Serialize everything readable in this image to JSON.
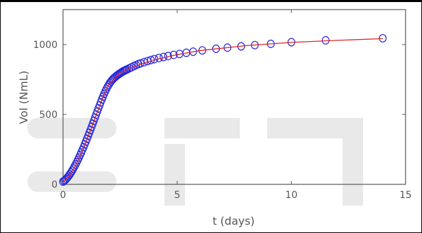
{
  "chart_data": {
    "type": "scatter",
    "title": "",
    "xlabel": "t (days)",
    "ylabel": "Vol (NmL)",
    "xlim": [
      0,
      15
    ],
    "ylim": [
      0,
      1250
    ],
    "xticks": [
      0,
      5,
      10,
      15
    ],
    "yticks": [
      0,
      500,
      1000
    ],
    "grid": false,
    "legend": "none",
    "colors": {
      "markers": "#2222dd",
      "fit_line": "#dd2222",
      "axes": "#555555"
    },
    "series": [
      {
        "style": "markers",
        "x": [
          0,
          0.05,
          0.1,
          0.15,
          0.2,
          0.25,
          0.3,
          0.35,
          0.4,
          0.45,
          0.5,
          0.55,
          0.6,
          0.65,
          0.7,
          0.75,
          0.8,
          0.85,
          0.9,
          0.95,
          1.0,
          1.05,
          1.1,
          1.15,
          1.2,
          1.25,
          1.3,
          1.35,
          1.4,
          1.45,
          1.5,
          1.55,
          1.6,
          1.65,
          1.7,
          1.75,
          1.8,
          1.85,
          1.9,
          1.95,
          2.0,
          2.05,
          2.1,
          2.15,
          2.2,
          2.25,
          2.3,
          2.35,
          2.4,
          2.45,
          2.5,
          2.55,
          2.6,
          2.65,
          2.7,
          2.75,
          2.8,
          2.9,
          3.0,
          3.1,
          3.2,
          3.3,
          3.4,
          3.55,
          3.7,
          3.85,
          4.0,
          4.2,
          4.4,
          4.6,
          4.85,
          5.1,
          5.4,
          5.7,
          6.1,
          6.7,
          7.2,
          7.8,
          8.4,
          9.1,
          10.0,
          11.5,
          14.0
        ],
        "y": [
          20,
          25,
          32,
          40,
          50,
          60,
          72,
          85,
          98,
          112,
          127,
          142,
          158,
          175,
          192,
          210,
          228,
          247,
          266,
          286,
          306,
          326,
          347,
          368,
          389,
          411,
          433,
          455,
          477,
          499,
          521,
          543,
          565,
          587,
          608,
          628,
          647,
          665,
          682,
          698,
          712,
          725,
          736,
          746,
          755,
          763,
          770,
          777,
          783,
          789,
          794,
          800,
          805,
          810,
          814,
          818,
          822,
          830,
          838,
          846,
          853,
          860,
          866,
          874,
          882,
          889,
          896,
          904,
          911,
          918,
          926,
          933,
          941,
          949,
          958,
          970,
          978,
          987,
          996,
          1005,
          1017,
          1030,
          1045
        ]
      },
      {
        "style": "line",
        "x": [
          0,
          0.25,
          0.5,
          0.75,
          1.0,
          1.25,
          1.5,
          1.75,
          2.0,
          2.25,
          2.5,
          2.75,
          3.0,
          3.5,
          4.0,
          5.0,
          6.0,
          8.0,
          10.0,
          12.0,
          14.0
        ],
        "y": [
          15,
          55,
          120,
          205,
          300,
          405,
          515,
          625,
          712,
          760,
          795,
          818,
          835,
          865,
          890,
          928,
          957,
          992,
          1015,
          1030,
          1042
        ]
      }
    ]
  }
}
